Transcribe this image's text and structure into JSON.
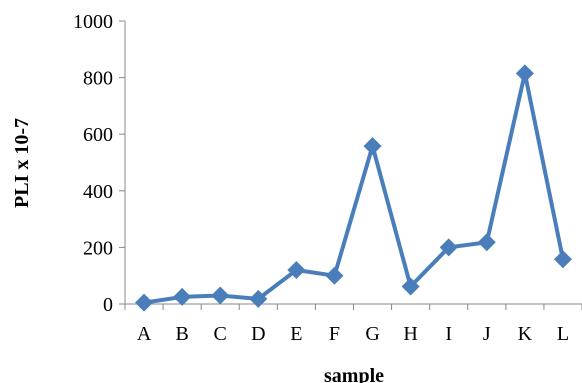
{
  "chart_data": {
    "type": "line",
    "title": "",
    "xlabel": "sample",
    "ylabel": "PLI x 10-7",
    "categories": [
      "A",
      "B",
      "C",
      "D",
      "E",
      "F",
      "G",
      "H",
      "I",
      "J",
      "K",
      "L"
    ],
    "series": [
      {
        "values": [
          5,
          25,
          30,
          18,
          120,
          100,
          558,
          62,
          200,
          218,
          815,
          158
        ]
      }
    ],
    "ylim": [
      0,
      1000
    ],
    "yticks": [
      "0",
      "200",
      "400",
      "600",
      "800",
      "1000"
    ],
    "grid": false,
    "legend": "none",
    "colors": {
      "series": "#4a7ebb",
      "axis": "#888888"
    }
  }
}
